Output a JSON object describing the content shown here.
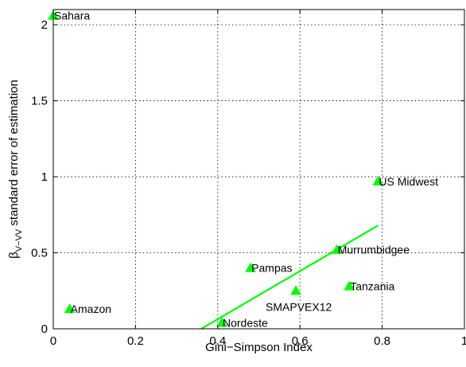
{
  "chart_data": {
    "type": "scatter",
    "title": "",
    "xlabel": "Gini−Simpson Index",
    "ylabel": {
      "prefix": "β",
      "subscript": "V−VV",
      "suffix": " standard error of estimation"
    },
    "xlim": [
      0,
      1
    ],
    "ylim": [
      0,
      2.1
    ],
    "x_ticks": [
      0,
      0.2,
      0.4,
      0.6,
      0.8,
      1
    ],
    "x_tick_labels": [
      "0",
      "0.2",
      "0.4",
      "0.6",
      "0.8",
      "1"
    ],
    "y_ticks": [
      0,
      0.5,
      1,
      1.5,
      2
    ],
    "y_tick_labels": [
      "0",
      "0.5",
      "1",
      "1.5",
      "2"
    ],
    "grid": true,
    "marker_color": "#00ff00",
    "line_color": "#00ff00",
    "points": [
      {
        "label": "Sahara",
        "x": 0.0,
        "y": 2.06
      },
      {
        "label": "Amazon",
        "x": 0.04,
        "y": 0.13
      },
      {
        "label": "Nordeste",
        "x": 0.41,
        "y": 0.04
      },
      {
        "label": "Pampas",
        "x": 0.48,
        "y": 0.4
      },
      {
        "label": "SMAPVEX12",
        "x": 0.59,
        "y": 0.25
      },
      {
        "label": "Murrumbidgee",
        "x": 0.69,
        "y": 0.52
      },
      {
        "label": "Tanzania",
        "x": 0.72,
        "y": 0.28
      },
      {
        "label": "US Midwest",
        "x": 0.79,
        "y": 0.97
      }
    ],
    "fit_line": {
      "x": [
        0.36,
        0.79
      ],
      "y": [
        0.0,
        0.68
      ]
    }
  }
}
